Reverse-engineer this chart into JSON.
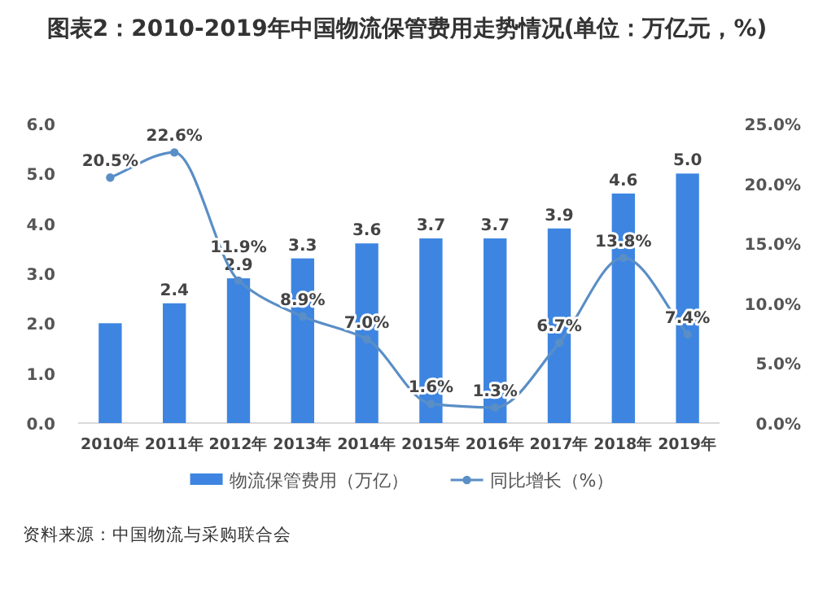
{
  "chart_data": {
    "type": "bar",
    "title": "图表2：2010-2019年中国物流保管费用走势情况(单位：万亿元，%)",
    "categories": [
      "2010年",
      "2011年",
      "2012年",
      "2013年",
      "2014年",
      "2015年",
      "2016年",
      "2017年",
      "2018年",
      "2019年"
    ],
    "series": [
      {
        "name": "物流保管费用（万亿）",
        "color": "#3d85e0",
        "values": [
          2.0,
          2.4,
          2.9,
          3.3,
          3.6,
          3.7,
          3.7,
          3.9,
          4.6,
          5.0
        ],
        "value_labels": [
          null,
          "2.4",
          "2.9",
          "3.3",
          "3.6",
          "3.7",
          "3.7",
          "3.9",
          "4.6",
          "5.0"
        ]
      },
      {
        "name": "同比增长（%）",
        "type": "line",
        "axis": "y2",
        "marker": "circle",
        "color": "#5a8ec6",
        "values": [
          20.5,
          22.6,
          11.9,
          8.9,
          7.0,
          1.6,
          1.3,
          6.7,
          13.8,
          7.4
        ],
        "value_labels": [
          "20.5%",
          "22.6%",
          "11.9%",
          "8.9%",
          "7.0%",
          "1.6%",
          "1.3%",
          "6.7%",
          "13.8%",
          "7.4%"
        ]
      }
    ],
    "ylim": [
      0,
      6
    ],
    "yticks": [
      {
        "value": 0,
        "label": "0.0"
      },
      {
        "value": 1,
        "label": "1.0"
      },
      {
        "value": 2,
        "label": "2.0"
      },
      {
        "value": 3,
        "label": "3.0"
      },
      {
        "value": 4,
        "label": "4.0"
      },
      {
        "value": 5,
        "label": "5.0"
      },
      {
        "value": 6,
        "label": "6.0"
      }
    ],
    "y2lim": [
      0,
      25
    ],
    "y2ticks": [
      {
        "value": 0,
        "label": "0.0%"
      },
      {
        "value": 5,
        "label": "5.0%"
      },
      {
        "value": 10,
        "label": "10.0%"
      },
      {
        "value": 15,
        "label": "15.0%"
      },
      {
        "value": 20,
        "label": "20.0%"
      },
      {
        "value": 25,
        "label": "25.0%"
      }
    ],
    "legend": "bottom",
    "annotations": [
      "资料来源：中国物流与采购联合会"
    ]
  }
}
